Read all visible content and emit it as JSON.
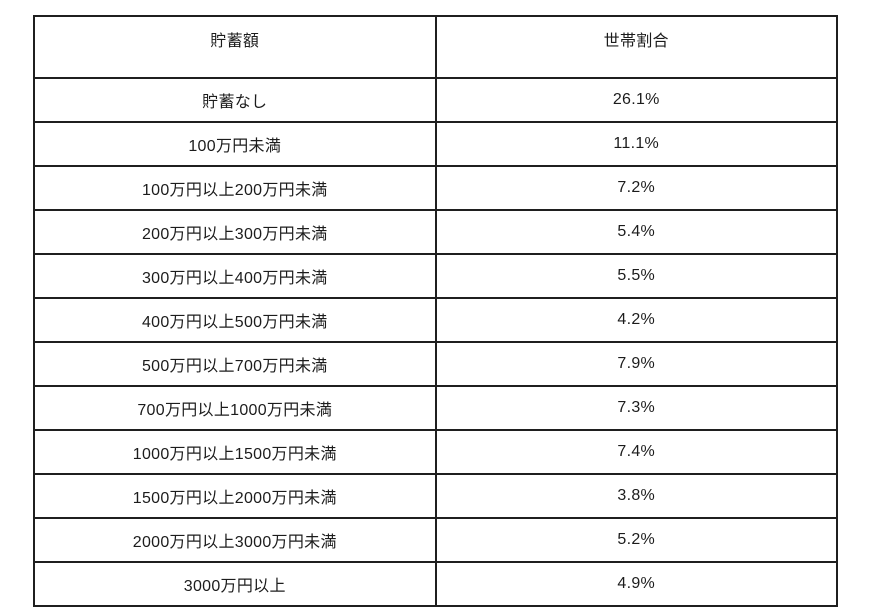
{
  "page": {
    "background": "#ffffff"
  },
  "table": {
    "colors": {
      "border": "#1f1f1f",
      "text": "#1c1c1c"
    },
    "columns": {
      "savings_amount_label": "貯蓄額",
      "household_share_label": "世帯割合"
    },
    "rows": [
      {
        "savings_range": "貯蓄なし",
        "household_share": "26.1%"
      },
      {
        "savings_range": "100万円未満",
        "household_share": "11.1%"
      },
      {
        "savings_range": "100万円以上200万円未満",
        "household_share": "7.2%"
      },
      {
        "savings_range": "200万円以上300万円未満",
        "household_share": "5.4%"
      },
      {
        "savings_range": "300万円以上400万円未満",
        "household_share": "5.5%"
      },
      {
        "savings_range": "400万円以上500万円未満",
        "household_share": "4.2%"
      },
      {
        "savings_range": "500万円以上700万円未満",
        "household_share": "7.9%"
      },
      {
        "savings_range": "700万円以上1000万円未満",
        "household_share": "7.3%"
      },
      {
        "savings_range": "1000万円以上1500万円未満",
        "household_share": "7.4%"
      },
      {
        "savings_range": "1500万円以上2000万円未満",
        "household_share": "3.8%"
      },
      {
        "savings_range": "2000万円以上3000万円未満",
        "household_share": "5.2%"
      },
      {
        "savings_range": "3000万円以上",
        "household_share": "4.9%"
      }
    ]
  }
}
